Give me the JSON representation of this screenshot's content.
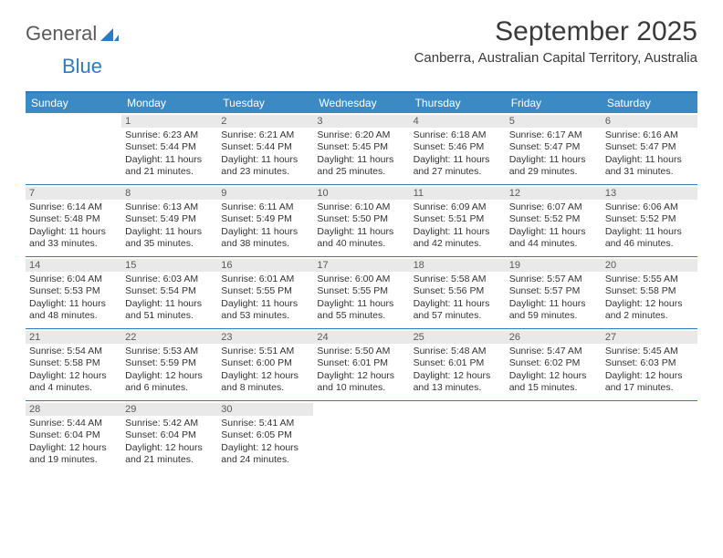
{
  "logo": {
    "text1": "General",
    "text2": "Blue"
  },
  "title": "September 2025",
  "location": "Canberra, Australian Capital Territory, Australia",
  "colors": {
    "header_bg": "#3b8ac4",
    "accent": "#2f7bbf",
    "daynum_bg": "#e9e9e9",
    "text": "#333333"
  },
  "dow": [
    "Sunday",
    "Monday",
    "Tuesday",
    "Wednesday",
    "Thursday",
    "Friday",
    "Saturday"
  ],
  "weeks": [
    [
      {
        "n": "",
        "sr": "",
        "ss": "",
        "dl": ""
      },
      {
        "n": "1",
        "sr": "Sunrise: 6:23 AM",
        "ss": "Sunset: 5:44 PM",
        "dl": "Daylight: 11 hours and 21 minutes."
      },
      {
        "n": "2",
        "sr": "Sunrise: 6:21 AM",
        "ss": "Sunset: 5:44 PM",
        "dl": "Daylight: 11 hours and 23 minutes."
      },
      {
        "n": "3",
        "sr": "Sunrise: 6:20 AM",
        "ss": "Sunset: 5:45 PM",
        "dl": "Daylight: 11 hours and 25 minutes."
      },
      {
        "n": "4",
        "sr": "Sunrise: 6:18 AM",
        "ss": "Sunset: 5:46 PM",
        "dl": "Daylight: 11 hours and 27 minutes."
      },
      {
        "n": "5",
        "sr": "Sunrise: 6:17 AM",
        "ss": "Sunset: 5:47 PM",
        "dl": "Daylight: 11 hours and 29 minutes."
      },
      {
        "n": "6",
        "sr": "Sunrise: 6:16 AM",
        "ss": "Sunset: 5:47 PM",
        "dl": "Daylight: 11 hours and 31 minutes."
      }
    ],
    [
      {
        "n": "7",
        "sr": "Sunrise: 6:14 AM",
        "ss": "Sunset: 5:48 PM",
        "dl": "Daylight: 11 hours and 33 minutes."
      },
      {
        "n": "8",
        "sr": "Sunrise: 6:13 AM",
        "ss": "Sunset: 5:49 PM",
        "dl": "Daylight: 11 hours and 35 minutes."
      },
      {
        "n": "9",
        "sr": "Sunrise: 6:11 AM",
        "ss": "Sunset: 5:49 PM",
        "dl": "Daylight: 11 hours and 38 minutes."
      },
      {
        "n": "10",
        "sr": "Sunrise: 6:10 AM",
        "ss": "Sunset: 5:50 PM",
        "dl": "Daylight: 11 hours and 40 minutes."
      },
      {
        "n": "11",
        "sr": "Sunrise: 6:09 AM",
        "ss": "Sunset: 5:51 PM",
        "dl": "Daylight: 11 hours and 42 minutes."
      },
      {
        "n": "12",
        "sr": "Sunrise: 6:07 AM",
        "ss": "Sunset: 5:52 PM",
        "dl": "Daylight: 11 hours and 44 minutes."
      },
      {
        "n": "13",
        "sr": "Sunrise: 6:06 AM",
        "ss": "Sunset: 5:52 PM",
        "dl": "Daylight: 11 hours and 46 minutes."
      }
    ],
    [
      {
        "n": "14",
        "sr": "Sunrise: 6:04 AM",
        "ss": "Sunset: 5:53 PM",
        "dl": "Daylight: 11 hours and 48 minutes."
      },
      {
        "n": "15",
        "sr": "Sunrise: 6:03 AM",
        "ss": "Sunset: 5:54 PM",
        "dl": "Daylight: 11 hours and 51 minutes."
      },
      {
        "n": "16",
        "sr": "Sunrise: 6:01 AM",
        "ss": "Sunset: 5:55 PM",
        "dl": "Daylight: 11 hours and 53 minutes."
      },
      {
        "n": "17",
        "sr": "Sunrise: 6:00 AM",
        "ss": "Sunset: 5:55 PM",
        "dl": "Daylight: 11 hours and 55 minutes."
      },
      {
        "n": "18",
        "sr": "Sunrise: 5:58 AM",
        "ss": "Sunset: 5:56 PM",
        "dl": "Daylight: 11 hours and 57 minutes."
      },
      {
        "n": "19",
        "sr": "Sunrise: 5:57 AM",
        "ss": "Sunset: 5:57 PM",
        "dl": "Daylight: 11 hours and 59 minutes."
      },
      {
        "n": "20",
        "sr": "Sunrise: 5:55 AM",
        "ss": "Sunset: 5:58 PM",
        "dl": "Daylight: 12 hours and 2 minutes."
      }
    ],
    [
      {
        "n": "21",
        "sr": "Sunrise: 5:54 AM",
        "ss": "Sunset: 5:58 PM",
        "dl": "Daylight: 12 hours and 4 minutes."
      },
      {
        "n": "22",
        "sr": "Sunrise: 5:53 AM",
        "ss": "Sunset: 5:59 PM",
        "dl": "Daylight: 12 hours and 6 minutes."
      },
      {
        "n": "23",
        "sr": "Sunrise: 5:51 AM",
        "ss": "Sunset: 6:00 PM",
        "dl": "Daylight: 12 hours and 8 minutes."
      },
      {
        "n": "24",
        "sr": "Sunrise: 5:50 AM",
        "ss": "Sunset: 6:01 PM",
        "dl": "Daylight: 12 hours and 10 minutes."
      },
      {
        "n": "25",
        "sr": "Sunrise: 5:48 AM",
        "ss": "Sunset: 6:01 PM",
        "dl": "Daylight: 12 hours and 13 minutes."
      },
      {
        "n": "26",
        "sr": "Sunrise: 5:47 AM",
        "ss": "Sunset: 6:02 PM",
        "dl": "Daylight: 12 hours and 15 minutes."
      },
      {
        "n": "27",
        "sr": "Sunrise: 5:45 AM",
        "ss": "Sunset: 6:03 PM",
        "dl": "Daylight: 12 hours and 17 minutes."
      }
    ],
    [
      {
        "n": "28",
        "sr": "Sunrise: 5:44 AM",
        "ss": "Sunset: 6:04 PM",
        "dl": "Daylight: 12 hours and 19 minutes."
      },
      {
        "n": "29",
        "sr": "Sunrise: 5:42 AM",
        "ss": "Sunset: 6:04 PM",
        "dl": "Daylight: 12 hours and 21 minutes."
      },
      {
        "n": "30",
        "sr": "Sunrise: 5:41 AM",
        "ss": "Sunset: 6:05 PM",
        "dl": "Daylight: 12 hours and 24 minutes."
      },
      {
        "n": "",
        "sr": "",
        "ss": "",
        "dl": ""
      },
      {
        "n": "",
        "sr": "",
        "ss": "",
        "dl": ""
      },
      {
        "n": "",
        "sr": "",
        "ss": "",
        "dl": ""
      },
      {
        "n": "",
        "sr": "",
        "ss": "",
        "dl": ""
      }
    ]
  ]
}
